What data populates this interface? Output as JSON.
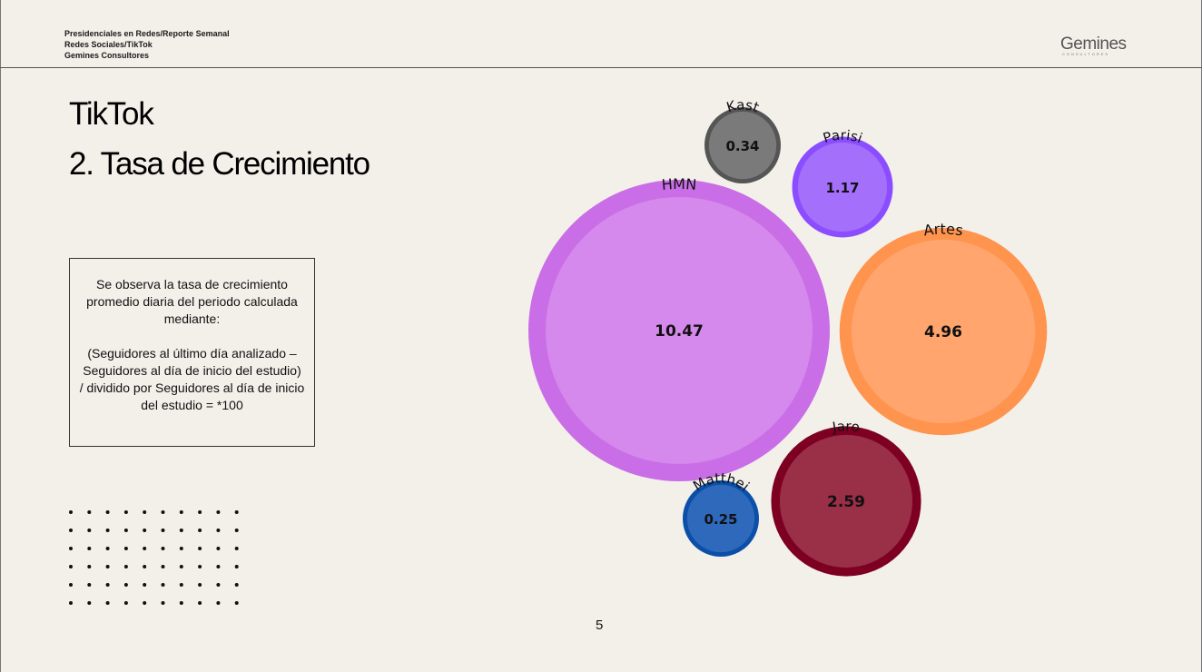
{
  "header": {
    "line1": "Presidenciales en Redes/Reporte Semanal",
    "line2": "Redes Sociales/TikTok",
    "line3": "Gemines Consultores"
  },
  "logo": {
    "text": "Gemines",
    "subtext": "CONSULTORES"
  },
  "title": {
    "line1": "TikTok",
    "line2": "2. Tasa de Crecimiento"
  },
  "note": {
    "para1": "Se observa la tasa de crecimiento promedio diaria del periodo calculada mediante:",
    "para2": "(Seguidores al último día analizado – Seguidores al día de inicio del estudio)",
    "para3": "/ dividido por Seguidores al día de inicio del estudio = *100"
  },
  "page_number": "5",
  "chart_data": {
    "type": "bubble",
    "title": "",
    "series": [
      {
        "name": "HMN",
        "value": 10.47,
        "color": "#c96ee6",
        "inner_color": "#d589ec"
      },
      {
        "name": "Artes",
        "value": 4.96,
        "color": "#ff944f",
        "inner_color": "#ffa56d"
      },
      {
        "name": "Jaro",
        "value": 2.59,
        "color": "#7d0022",
        "inner_color": "#9a2f48"
      },
      {
        "name": "Parisi",
        "value": 1.17,
        "color": "#8b4dff",
        "inner_color": "#a36ffb"
      },
      {
        "name": "Kast",
        "value": 0.34,
        "color": "#555555",
        "inner_color": "#7a7a7a"
      },
      {
        "name": "Matthei",
        "value": 0.25,
        "color": "#0b4fa8",
        "inner_color": "#2e69bc"
      }
    ]
  }
}
